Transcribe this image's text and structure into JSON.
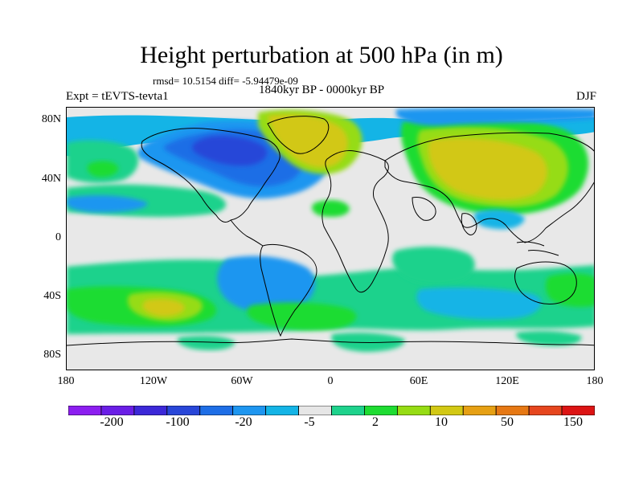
{
  "title": "Height perturbation at 500 hPa (in m)",
  "stats": "rmsd= 10.5154 diff= -5.94479e-09",
  "period": "1840kyr BP - 0000kyr BP",
  "experiment": "Expt = tEVTS-tevta1",
  "season": "DJF",
  "lat_labels": [
    "80N",
    "40N",
    "0",
    "40S",
    "80S"
  ],
  "lon_labels": [
    "180",
    "120W",
    "60W",
    "0",
    "60E",
    "120E",
    "180"
  ],
  "colorbar": {
    "colors": [
      "#8c1ef0",
      "#6a1ee6",
      "#3c28d8",
      "#2846d8",
      "#1e6ee6",
      "#1e96f0",
      "#14b4e6",
      "#e6e6e6",
      "#1ed28c",
      "#1edc32",
      "#96dc14",
      "#d2c814",
      "#e6a014",
      "#e67814",
      "#e6461e",
      "#dc1414"
    ],
    "labels": [
      "-200",
      "-100",
      "-20",
      "-5",
      "2",
      "10",
      "50",
      "150"
    ]
  },
  "palette": {
    "neutral": "#e8e8e8",
    "light_blue": "#14b4e6",
    "mid_blue": "#1e96f0",
    "blue": "#1e6ee6",
    "dark_blue": "#2846d8",
    "mint": "#1ed28c",
    "green": "#1edc32",
    "lime": "#96dc14",
    "mustard": "#d2c814"
  },
  "chart_data": {
    "type": "heatmap",
    "variable": "Height perturbation at 500 hPa",
    "units": "m",
    "projection": "cylindrical equidistant",
    "lon_range": [
      -180,
      180
    ],
    "lat_range": [
      -90,
      90
    ],
    "contour_levels": [
      -200,
      -150,
      -100,
      -50,
      -20,
      -10,
      -5,
      -2,
      2,
      5,
      10,
      20,
      50,
      100,
      150
    ],
    "features": [
      {
        "region": "North America / North Atlantic",
        "value_range": [
          -100,
          -20
        ],
        "sign": "negative"
      },
      {
        "region": "Greenland / North Atlantic",
        "value_range": [
          20,
          50
        ],
        "sign": "positive"
      },
      {
        "region": "Eurasia",
        "value_range": [
          20,
          50
        ],
        "sign": "positive"
      },
      {
        "region": "Southern Ocean near 50S, 150W",
        "value_range": [
          20,
          50
        ],
        "sign": "positive"
      },
      {
        "region": "South Atlantic near 50S, 20W",
        "value_range": [
          10,
          20
        ],
        "sign": "positive"
      },
      {
        "region": "Tropics",
        "value_range": [
          -2,
          2
        ],
        "sign": "neutral"
      }
    ]
  }
}
